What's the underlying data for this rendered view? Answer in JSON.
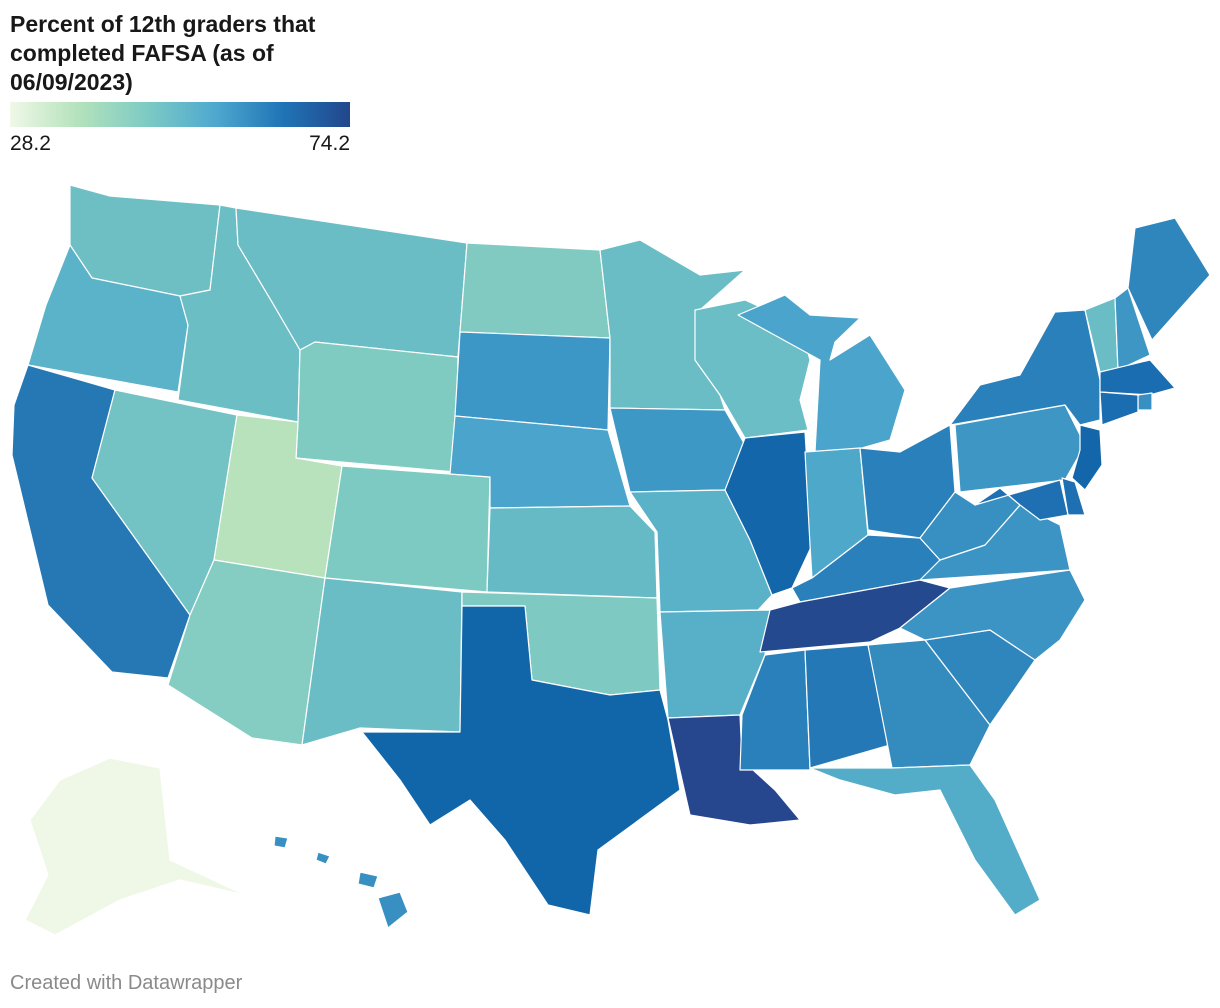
{
  "title": "Percent of 12th graders that completed FAFSA (as of 06/09/2023)",
  "legend": {
    "min_label": "28.2",
    "max_label": "74.2",
    "colors": [
      "#f0f8e8",
      "#b4e2bc",
      "#7ecbc4",
      "#4fa9cf",
      "#1f75b6",
      "#23468c"
    ]
  },
  "credit": "Created with Datawrapper",
  "states": [
    {
      "name": "Washington",
      "color": "#6dbfc4"
    },
    {
      "name": "Oregon",
      "color": "#5ab3c8"
    },
    {
      "name": "California",
      "color": "#2678b4"
    },
    {
      "name": "Nevada",
      "color": "#73c2c4"
    },
    {
      "name": "Idaho",
      "color": "#6cbec5"
    },
    {
      "name": "Montana",
      "color": "#6abdc5"
    },
    {
      "name": "Wyoming",
      "color": "#7fcbc2"
    },
    {
      "name": "Utah",
      "color": "#b7e2bb"
    },
    {
      "name": "Arizona",
      "color": "#85cdc2"
    },
    {
      "name": "Colorado",
      "color": "#7dcac2"
    },
    {
      "name": "New Mexico",
      "color": "#6abdc5"
    },
    {
      "name": "North Dakota",
      "color": "#80cac2"
    },
    {
      "name": "South Dakota",
      "color": "#3c96c6"
    },
    {
      "name": "Nebraska",
      "color": "#4aa4cb"
    },
    {
      "name": "Kansas",
      "color": "#66bac6"
    },
    {
      "name": "Oklahoma",
      "color": "#7ecac2"
    },
    {
      "name": "Texas",
      "color": "#1166aa"
    },
    {
      "name": "Minnesota",
      "color": "#6abdc5"
    },
    {
      "name": "Iowa",
      "color": "#3e98c6"
    },
    {
      "name": "Missouri",
      "color": "#59b2c8"
    },
    {
      "name": "Arkansas",
      "color": "#57b0c8"
    },
    {
      "name": "Louisiana",
      "color": "#26478d"
    },
    {
      "name": "Wisconsin",
      "color": "#6bbec5"
    },
    {
      "name": "Illinois",
      "color": "#1366aa"
    },
    {
      "name": "Michigan",
      "color": "#4aa4cb"
    },
    {
      "name": "Indiana",
      "color": "#4ea8ca"
    },
    {
      "name": "Ohio",
      "color": "#2a80ba"
    },
    {
      "name": "Kentucky",
      "color": "#2a80ba"
    },
    {
      "name": "Tennessee",
      "color": "#24498e"
    },
    {
      "name": "Mississippi",
      "color": "#2a80ba"
    },
    {
      "name": "Alabama",
      "color": "#2478b6"
    },
    {
      "name": "Georgia",
      "color": "#338bbe"
    },
    {
      "name": "Florida",
      "color": "#53adc9"
    },
    {
      "name": "South Carolina",
      "color": "#2f86bc"
    },
    {
      "name": "North Carolina",
      "color": "#3b94c3"
    },
    {
      "name": "Virginia",
      "color": "#3b94c3"
    },
    {
      "name": "West Virginia",
      "color": "#3890c2"
    },
    {
      "name": "Pennsylvania",
      "color": "#3d96c4"
    },
    {
      "name": "New York",
      "color": "#2a80ba"
    },
    {
      "name": "Vermont",
      "color": "#6abdc5"
    },
    {
      "name": "New Hampshire",
      "color": "#3d96c4"
    },
    {
      "name": "Maine",
      "color": "#2f86bc"
    },
    {
      "name": "Massachusetts",
      "color": "#1a6db0"
    },
    {
      "name": "Rhode Island",
      "color": "#3890c2"
    },
    {
      "name": "Connecticut",
      "color": "#1a6db0"
    },
    {
      "name": "New Jersey",
      "color": "#1366aa"
    },
    {
      "name": "Delaware",
      "color": "#1f70b2"
    },
    {
      "name": "Maryland",
      "color": "#1f70b2"
    },
    {
      "name": "Alaska",
      "color": "#eff8e7"
    },
    {
      "name": "Hawaii",
      "color": "#3890c2"
    }
  ]
}
